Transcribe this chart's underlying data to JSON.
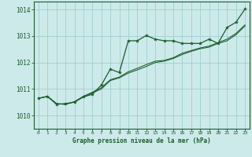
{
  "title": "Graphe pression niveau de la mer (hPa)",
  "background_color": "#cdeaea",
  "grid_color": "#9ecfcf",
  "line_color": "#1a5c2a",
  "xlim": [
    -0.5,
    23.5
  ],
  "ylim": [
    1009.5,
    1014.3
  ],
  "yticks": [
    1010,
    1011,
    1012,
    1013,
    1014
  ],
  "xticks": [
    0,
    1,
    2,
    3,
    4,
    5,
    6,
    7,
    8,
    9,
    10,
    11,
    12,
    13,
    14,
    15,
    16,
    17,
    18,
    19,
    20,
    21,
    22,
    23
  ],
  "series1_x": [
    0,
    1,
    2,
    3,
    4,
    5,
    6,
    7,
    8,
    9,
    10,
    11,
    12,
    13,
    14,
    15,
    16,
    17,
    18,
    19,
    20,
    21,
    22,
    23
  ],
  "series1_y": [
    1010.65,
    1010.72,
    1010.42,
    1010.45,
    1010.5,
    1010.7,
    1010.8,
    1011.15,
    1011.75,
    1011.62,
    1012.82,
    1012.82,
    1013.02,
    1012.88,
    1012.82,
    1012.82,
    1012.72,
    1012.72,
    1012.72,
    1012.88,
    1012.72,
    1013.32,
    1013.52,
    1014.02
  ],
  "series2_x": [
    0,
    1,
    2,
    3,
    4,
    5,
    6,
    7,
    8,
    9,
    10,
    11,
    12,
    13,
    14,
    15,
    16,
    17,
    18,
    19,
    20,
    21,
    22,
    23
  ],
  "series2_y": [
    1010.65,
    1010.72,
    1010.45,
    1010.42,
    1010.52,
    1010.72,
    1010.85,
    1011.0,
    1011.32,
    1011.42,
    1011.6,
    1011.72,
    1011.85,
    1012.0,
    1012.05,
    1012.15,
    1012.3,
    1012.42,
    1012.52,
    1012.58,
    1012.72,
    1012.82,
    1013.05,
    1013.38
  ],
  "series3_x": [
    0,
    1,
    2,
    3,
    4,
    5,
    6,
    7,
    8,
    9,
    10,
    11,
    12,
    13,
    14,
    15,
    16,
    17,
    18,
    19,
    20,
    21,
    22,
    23
  ],
  "series3_y": [
    1010.65,
    1010.72,
    1010.45,
    1010.42,
    1010.52,
    1010.72,
    1010.88,
    1011.05,
    1011.35,
    1011.45,
    1011.65,
    1011.78,
    1011.92,
    1012.05,
    1012.08,
    1012.18,
    1012.35,
    1012.45,
    1012.55,
    1012.62,
    1012.75,
    1012.88,
    1013.1,
    1013.42
  ]
}
